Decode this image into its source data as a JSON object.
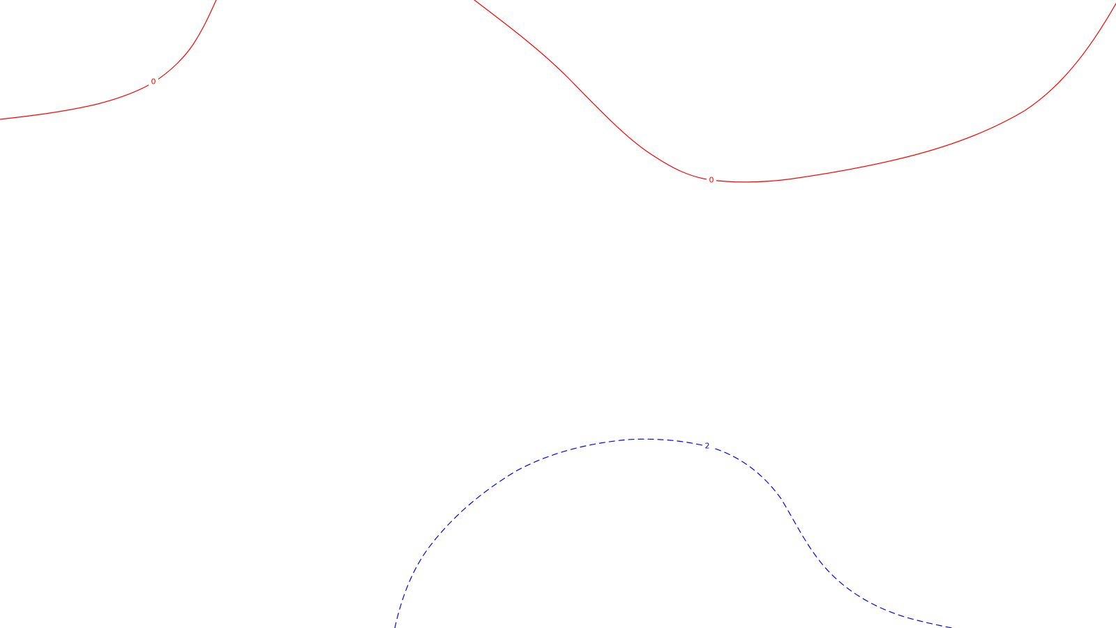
{
  "map": {
    "background": "#ffffff",
    "contours": [
      {
        "id": "contour-0-west",
        "value": "0",
        "color": "#ff0000",
        "style": "solid"
      },
      {
        "id": "contour-0-east",
        "value": "0",
        "color": "#ff0000",
        "style": "solid"
      },
      {
        "id": "contour-2",
        "value": "2",
        "color": "#0000ff",
        "style": "dashed"
      }
    ]
  }
}
